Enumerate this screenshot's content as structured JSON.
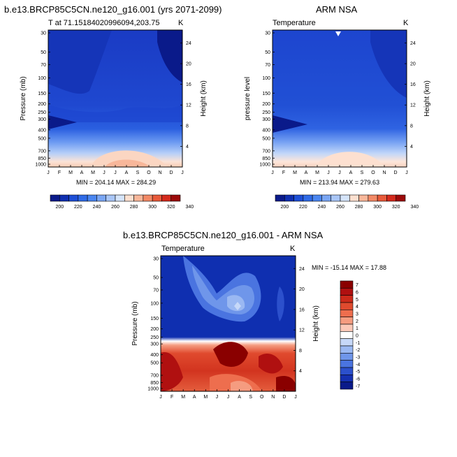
{
  "figure": {
    "top_left_title": "b.e13.BRCP85C5CN.ne120_g16.001 (yrs 2071-2099)",
    "top_right_title": "ARM NSA",
    "bottom_title": "b.e13.BRCP85C5CN.ne120_g16.001 - ARM NSA"
  },
  "chart_data": [
    {
      "type": "heatmap",
      "title": "b.e13.BRCP85C5CN.ne120_g16.001 (yrs 2071-2099)",
      "left_label": "T at 71.15184020996094,203.75",
      "right_label": "K",
      "ylabel": "Pressure (mb)",
      "ylabel_right": "Height (km)",
      "x_ticks": [
        "J",
        "F",
        "M",
        "A",
        "M",
        "J",
        "J",
        "A",
        "S",
        "O",
        "N",
        "D",
        "J"
      ],
      "y_ticks": [
        "30",
        "50",
        "70",
        "100",
        "150",
        "200",
        "250",
        "300",
        "400",
        "500",
        "700",
        "850",
        "1000"
      ],
      "y_ticks_right": [
        "24",
        "20",
        "16",
        "12",
        "8",
        "4"
      ],
      "stats": "MIN = 204.14 MAX = 284.29",
      "min": 204.14,
      "max": 284.29,
      "colorbar_labels": [
        "200",
        "220",
        "240",
        "260",
        "280",
        "300",
        "320",
        "340"
      ]
    },
    {
      "type": "heatmap",
      "title": "ARM NSA",
      "left_label": "Temperature",
      "right_label": "K",
      "ylabel": "pressure level",
      "ylabel_right": "Height (km)",
      "x_ticks": [
        "J",
        "F",
        "M",
        "A",
        "M",
        "J",
        "J",
        "A",
        "S",
        "O",
        "N",
        "D",
        "J"
      ],
      "y_ticks": [
        "30",
        "50",
        "70",
        "100",
        "150",
        "200",
        "250",
        "300",
        "400",
        "500",
        "700",
        "850",
        "1000"
      ],
      "y_ticks_right": [
        "24",
        "20",
        "16",
        "12",
        "8",
        "4"
      ],
      "stats": "MIN = 213.94 MAX = 279.63",
      "min": 213.94,
      "max": 279.63,
      "colorbar_labels": [
        "200",
        "220",
        "240",
        "260",
        "280",
        "300",
        "320",
        "340"
      ]
    },
    {
      "type": "heatmap",
      "title": "b.e13.BRCP85C5CN.ne120_g16.001 - ARM NSA",
      "left_label": "Temperature",
      "right_label": "K",
      "ylabel": "Pressure (mb)",
      "ylabel_right": "Height (km)",
      "x_ticks": [
        "J",
        "F",
        "M",
        "A",
        "M",
        "J",
        "J",
        "A",
        "S",
        "O",
        "N",
        "D",
        "J"
      ],
      "y_ticks": [
        "30",
        "50",
        "70",
        "100",
        "150",
        "200",
        "250",
        "300",
        "400",
        "500",
        "700",
        "850",
        "1000"
      ],
      "y_ticks_right": [
        "24",
        "20",
        "16",
        "12",
        "8",
        "4"
      ],
      "stats": "MIN = -15.14 MAX =  17.88",
      "min": -15.14,
      "max": 17.88,
      "colorbar_labels": [
        "7",
        "6",
        "5",
        "4",
        "3",
        "2",
        "1",
        "0",
        "-1",
        "-2",
        "-3",
        "-4",
        "-5",
        "-6",
        "-7"
      ]
    }
  ],
  "colors": {
    "abs_scale": [
      "#0a1a8a",
      "#0f2fb0",
      "#1d4fd6",
      "#2f6be6",
      "#4a86f0",
      "#7aa6f4",
      "#a9c6f7",
      "#d5e4fa",
      "#fde0d0",
      "#f8b79a",
      "#f38a66",
      "#e85a3a",
      "#d42a1c",
      "#9c0a0a"
    ],
    "diff_scale": [
      "#8a0000",
      "#b01010",
      "#cc2a1a",
      "#e04a2e",
      "#ee6e4e",
      "#f59c80",
      "#fbc9b8",
      "#ffffff",
      "#c6d8f8",
      "#9ab8f2",
      "#6f96ea",
      "#4a74e0",
      "#2c50cc",
      "#1530b0",
      "#0a1a8a"
    ]
  }
}
